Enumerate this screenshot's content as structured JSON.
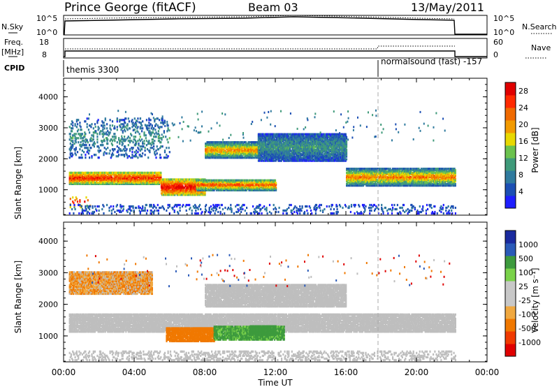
{
  "header": {
    "station": "Prince George (fitACF)",
    "beam": "Beam 03",
    "date": "13/May/2011"
  },
  "summary": {
    "nsky_label": "N.Sky",
    "nsearch_label": "N.Search",
    "count_ticks": [
      "10^5",
      "10^0"
    ],
    "freq_label_1": "Freq.",
    "freq_label_2": "[MHz]",
    "freq_ticks": [
      "18",
      "8"
    ],
    "nave_label": "Nave",
    "nave_ticks": [
      "60",
      "0"
    ],
    "cpid_label": "CPID",
    "cpid_1": "themis 3300",
    "cpid_2": "normalsound (fast) -157",
    "cpid_change_hour": 18.0
  },
  "colors": {
    "power": [
      "#1e1eff",
      "#1c4fb4",
      "#2f7a9e",
      "#3f9a7a",
      "#6bc24e",
      "#e8d800",
      "#f29a00",
      "#f06a00",
      "#ff2a00",
      "#e00000"
    ],
    "velocity": [
      "#e00000",
      "#f03a00",
      "#f07800",
      "#f0a840",
      "#c8c8c8",
      "#c8c8c8",
      "#7ad24a",
      "#3d9a3d",
      "#2a5ab8",
      "#1a2a9e"
    ],
    "ground_scatter": "#bebebe"
  },
  "chart_data": [
    {
      "type": "heatmap",
      "name": "power-panel",
      "xlabel": "Time UT",
      "ylabel": "Slant Range [km]",
      "xlim": [
        0,
        24
      ],
      "ylim": [
        180,
        4600
      ],
      "x_ticks": [
        "00:00",
        "04:00",
        "08:00",
        "12:00",
        "16:00",
        "20:00",
        "00:00"
      ],
      "y_ticks": [
        "1000",
        "2000",
        "3000",
        "4000"
      ],
      "colorbar_label": "Power [dB]",
      "colorbar_ticks": [
        "4",
        "8",
        "12",
        "16",
        "20",
        "24",
        "28"
      ],
      "clim": [
        0,
        30
      ],
      "regions": [
        {
          "t0": 0.3,
          "t1": 5.5,
          "r_lo": 1150,
          "r_hi": 1550,
          "peak": 27,
          "edge": 12
        },
        {
          "t0": 5.5,
          "t1": 8.0,
          "r_lo": 800,
          "r_hi": 1300,
          "peak": 29,
          "edge": 14
        },
        {
          "t0": 7.5,
          "t1": 12.0,
          "r_lo": 950,
          "r_hi": 1300,
          "peak": 24,
          "edge": 8
        },
        {
          "t0": 8.0,
          "t1": 11.0,
          "r_lo": 2000,
          "r_hi": 2500,
          "peak": 22,
          "edge": 6
        },
        {
          "t0": 11.0,
          "t1": 16.0,
          "r_lo": 1900,
          "r_hi": 2800,
          "peak": 10,
          "edge": 4
        },
        {
          "t0": 16.0,
          "t1": 22.2,
          "r_lo": 1100,
          "r_hi": 1650,
          "peak": 22,
          "edge": 6
        },
        {
          "t0": 0.3,
          "t1": 6.0,
          "r_lo": 2000,
          "r_hi": 3300,
          "peak": 10,
          "edge": 4
        },
        {
          "t0": 0.3,
          "t1": 1.5,
          "r_lo": 400,
          "r_hi": 750,
          "peak": 26,
          "edge": 14
        },
        {
          "t0": 0.3,
          "t1": 22.2,
          "r_lo": 200,
          "r_hi": 500,
          "peak": 6,
          "edge": 3
        }
      ]
    },
    {
      "type": "heatmap",
      "name": "velocity-panel",
      "xlabel": "Time UT",
      "ylabel": "Slant Range [km]",
      "xlim": [
        0,
        24
      ],
      "ylim": [
        180,
        4600
      ],
      "x_ticks": [
        "00:00",
        "04:00",
        "08:00",
        "12:00",
        "16:00",
        "20:00",
        "00:00"
      ],
      "y_ticks": [
        "1000",
        "2000",
        "3000",
        "4000"
      ],
      "colorbar_label": "Velocity [m s⁻¹]",
      "colorbar_ticks": [
        "1000",
        "500",
        "100",
        "25",
        "-25",
        "-100",
        "-500",
        "-1000"
      ],
      "regions": [
        {
          "t0": 0.3,
          "t1": 22.2,
          "r_lo": 1100,
          "r_hi": 1650,
          "vel": 0
        },
        {
          "t0": 8.0,
          "t1": 16.0,
          "r_lo": 1900,
          "r_hi": 2600,
          "vel": 0
        },
        {
          "t0": 5.8,
          "t1": 8.5,
          "r_lo": 800,
          "r_hi": 1250,
          "vel": -250
        },
        {
          "t0": 8.5,
          "t1": 12.5,
          "r_lo": 850,
          "r_hi": 1300,
          "vel": 150
        },
        {
          "t0": 10.5,
          "t1": 12.0,
          "r_lo": 1000,
          "r_hi": 1300,
          "vel": 350
        },
        {
          "t0": 0.3,
          "t1": 5.0,
          "r_lo": 2300,
          "r_hi": 3000,
          "vel": -80
        },
        {
          "t0": 0.3,
          "t1": 22.2,
          "r_lo": 200,
          "r_hi": 500,
          "vel": 0
        }
      ]
    }
  ]
}
